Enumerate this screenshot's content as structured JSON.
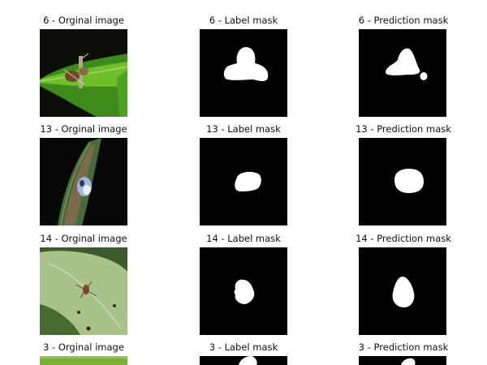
{
  "rows": [
    {
      "orig": "6 - Orginal image",
      "label": "6 - Label mask",
      "pred": "6 - Prediction mask"
    },
    {
      "orig": "13 - Orginal image",
      "label": "13 - Label mask",
      "pred": "13 - Prediction mask"
    },
    {
      "orig": "14 - Orginal image",
      "label": "14 - Label mask",
      "pred": "14 - Prediction mask"
    },
    {
      "orig": "3 - Orginal image",
      "label": "3 - Label mask",
      "pred": "3 - Prediction mask"
    }
  ]
}
